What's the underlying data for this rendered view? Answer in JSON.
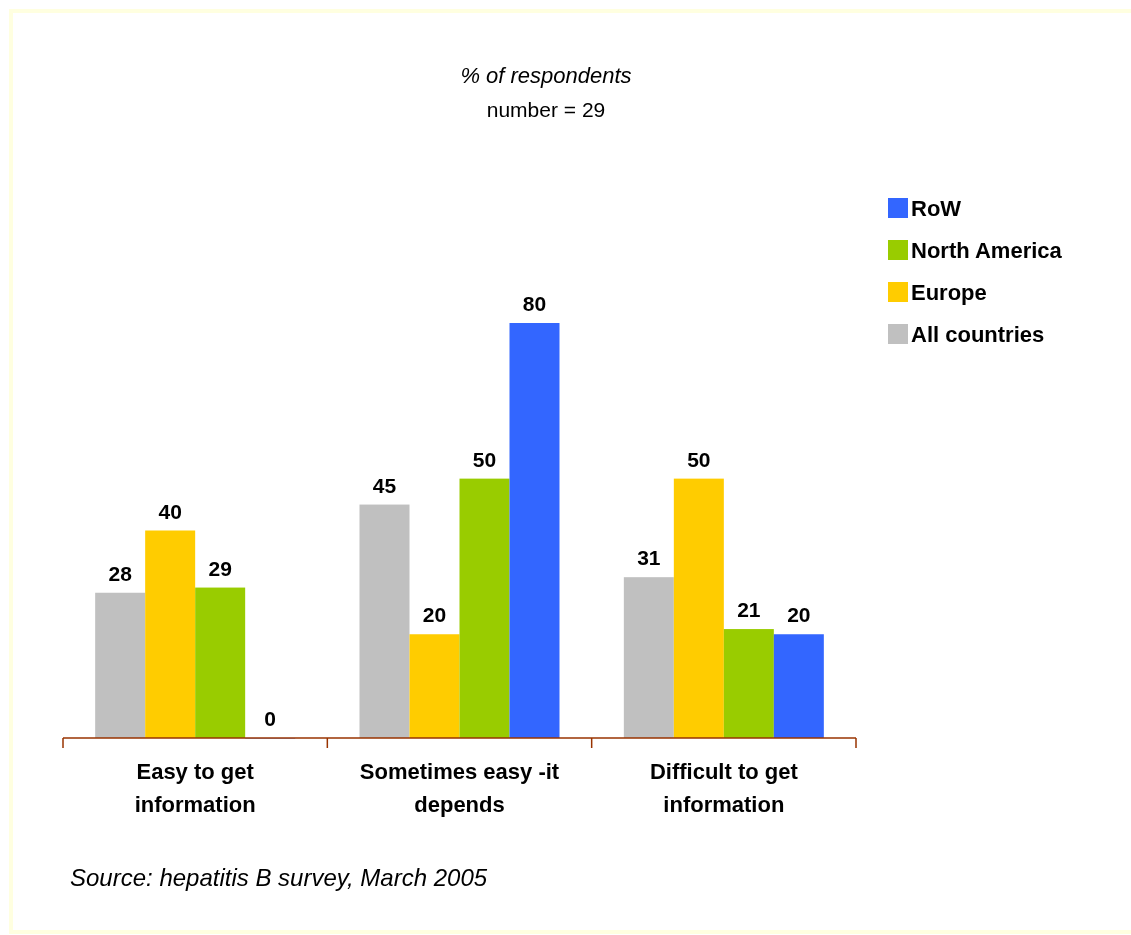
{
  "chart_data": {
    "type": "bar",
    "title": "% of respondents",
    "subtitle": "number = 29",
    "categories": [
      "Easy to get information",
      "Sometimes easy -it depends",
      "Difficult to get information"
    ],
    "series": [
      {
        "name": "All countries",
        "color": "#c0c0c0",
        "values": [
          28,
          45,
          31
        ]
      },
      {
        "name": "Europe",
        "color": "#ffcc00",
        "values": [
          40,
          20,
          50
        ]
      },
      {
        "name": "North America",
        "color": "#99cc00",
        "values": [
          29,
          50,
          21
        ]
      },
      {
        "name": "RoW",
        "color": "#3366ff",
        "values": [
          0,
          80,
          20
        ]
      }
    ],
    "data_labels": true,
    "legend": "right",
    "grid": false,
    "annotations": [
      "Source: hepatitis B survey, March 2005"
    ]
  }
}
